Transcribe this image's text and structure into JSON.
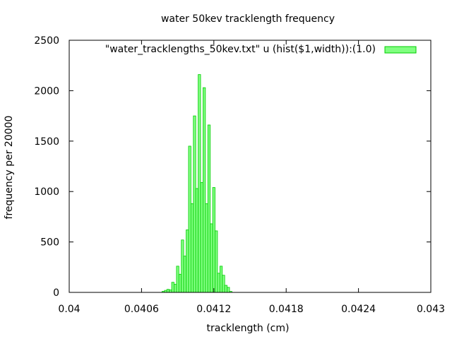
{
  "chart_data": {
    "type": "bar",
    "title": "water 50kev tracklength frequency",
    "xlabel": "tracklength (cm)",
    "ylabel": "frequency per 20000",
    "xlim": [
      0.04,
      0.043
    ],
    "ylim": [
      0,
      2500
    ],
    "xticks": [
      0.04,
      0.0406,
      0.0412,
      0.0418,
      0.0424,
      0.043
    ],
    "xtick_labels": [
      "0.04",
      "0.0406",
      "0.0412",
      "0.0418",
      "0.0424",
      "0.043"
    ],
    "yticks": [
      0,
      500,
      1000,
      1500,
      2000,
      2500
    ],
    "ytick_labels": [
      "0",
      "500",
      "1000",
      "1500",
      "2000",
      "2500"
    ],
    "grid": false,
    "legend_position": "top-right",
    "series": [
      {
        "name": "\"water_tracklengths_50kev.txt\" u (hist($1,width)):(1.0)",
        "color": "#80ff80",
        "edge_color": "#00cc00",
        "bin_width": 2e-05,
        "x": [
          0.04078,
          0.0408,
          0.04082,
          0.04084,
          0.04086,
          0.04088,
          0.0409,
          0.04092,
          0.04094,
          0.04096,
          0.04098,
          0.041,
          0.04102,
          0.04104,
          0.04106,
          0.04108,
          0.0411,
          0.04112,
          0.04114,
          0.04116,
          0.04118,
          0.0412,
          0.04122,
          0.04124,
          0.04126,
          0.04128,
          0.0413,
          0.04132,
          0.04134,
          0.04136,
          0.04138,
          0.0414,
          0.04142,
          0.04144,
          0.04146,
          0.04148,
          0.0415,
          0.04152,
          0.04154,
          0.04156,
          0.04158,
          0.0416,
          0.04162
        ],
        "values": [
          10,
          20,
          30,
          25,
          100,
          80,
          260,
          180,
          520,
          360,
          620,
          1450,
          880,
          1750,
          1030,
          2160,
          1090,
          2030,
          880,
          1660,
          680,
          1040,
          610,
          190,
          260,
          170,
          70,
          50,
          10,
          0,
          0,
          0,
          0,
          0,
          0,
          0,
          0,
          0,
          0,
          0,
          0,
          0,
          0
        ]
      }
    ]
  }
}
